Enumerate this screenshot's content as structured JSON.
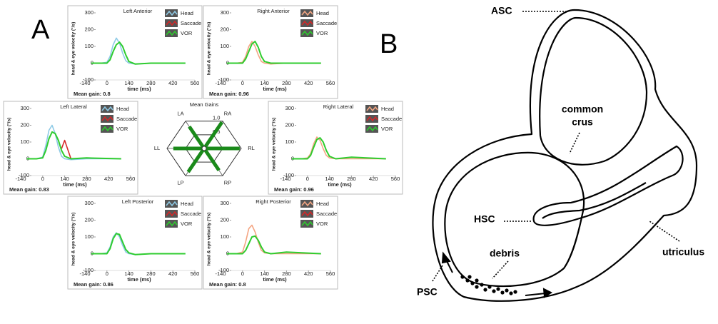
{
  "panel_labels": [
    "A",
    "B"
  ],
  "chart_data": [
    {
      "type": "line",
      "title": "Left Anterior",
      "y_label": "head & eye velocity (°/s)",
      "x_label": "time (ms)",
      "annotation": "Mean gain: 0.8",
      "x": [
        -100,
        -40,
        0,
        20,
        40,
        60,
        80,
        100,
        120,
        140,
        180,
        280,
        500
      ],
      "xlim": [
        -140,
        560
      ],
      "xticks": [
        -140,
        0,
        140,
        280,
        420,
        560
      ],
      "ylim": [
        -100,
        300
      ],
      "yticks": [
        -100,
        0,
        100,
        200,
        300
      ],
      "series": [
        {
          "name": "Head",
          "color": "#8ecae6",
          "values": [
            0,
            0,
            5,
            40,
            110,
            150,
            120,
            60,
            15,
            0,
            -5,
            0,
            0
          ]
        },
        {
          "name": "Saccade",
          "color": "#d62728",
          "values": [
            null,
            null,
            null,
            null,
            null,
            null,
            null,
            null,
            null,
            null,
            null,
            null,
            null
          ]
        },
        {
          "name": "VOR",
          "color": "#2ecc2e",
          "values": [
            0,
            0,
            0,
            20,
            70,
            110,
            125,
            100,
            50,
            10,
            -5,
            0,
            0
          ]
        }
      ]
    },
    {
      "type": "line",
      "title": "Right Anterior",
      "y_label": "head & eye velocity (°/s)",
      "x_label": "time (ms)",
      "annotation": "Mean gain: 0.96",
      "x": [
        -100,
        -40,
        0,
        20,
        40,
        60,
        80,
        100,
        120,
        140,
        180,
        280,
        500
      ],
      "xlim": [
        -140,
        560
      ],
      "xticks": [
        -140,
        0,
        140,
        280,
        420,
        560
      ],
      "ylim": [
        -100,
        300
      ],
      "yticks": [
        -100,
        0,
        100,
        200,
        300
      ],
      "series": [
        {
          "name": "Head",
          "color": "#f4a582",
          "values": [
            0,
            0,
            5,
            40,
            100,
            130,
            100,
            50,
            10,
            0,
            -5,
            0,
            0
          ]
        },
        {
          "name": "Saccade",
          "color": "#d62728",
          "values": [
            null,
            null,
            null,
            null,
            null,
            null,
            null,
            null,
            null,
            null,
            null,
            null,
            null
          ]
        },
        {
          "name": "VOR",
          "color": "#2ecc2e",
          "values": [
            0,
            0,
            0,
            25,
            70,
            115,
            130,
            95,
            40,
            10,
            0,
            0,
            0
          ]
        }
      ]
    },
    {
      "type": "line",
      "title": "Left Lateral",
      "y_label": "head & eye velocity (°/s)",
      "x_label": "time (ms)",
      "annotation": "Mean gain: 0.83",
      "x": [
        -100,
        -40,
        0,
        20,
        40,
        60,
        80,
        100,
        120,
        140,
        180,
        280,
        500
      ],
      "xlim": [
        -140,
        560
      ],
      "xticks": [
        -140,
        0,
        140,
        280,
        420,
        560
      ],
      "ylim": [
        -100,
        300
      ],
      "yticks": [
        -100,
        0,
        100,
        200,
        300
      ],
      "series": [
        {
          "name": "Head",
          "color": "#8ecae6",
          "values": [
            0,
            0,
            10,
            80,
            170,
            200,
            150,
            70,
            15,
            0,
            -5,
            0,
            0
          ]
        },
        {
          "name": "Saccade",
          "color": "#d62728",
          "values": [
            null,
            null,
            null,
            null,
            null,
            null,
            null,
            null,
            60,
            110,
            0,
            null,
            null
          ]
        },
        {
          "name": "VOR",
          "color": "#2ecc2e",
          "values": [
            0,
            0,
            5,
            50,
            120,
            160,
            150,
            110,
            50,
            15,
            0,
            5,
            0
          ]
        }
      ]
    },
    {
      "type": "line",
      "title": "Right Lateral",
      "y_label": "head & eye velocity (°/s)",
      "x_label": "time (ms)",
      "annotation": "Mean gain: 0.96",
      "x": [
        -100,
        -40,
        0,
        20,
        40,
        60,
        80,
        100,
        120,
        140,
        180,
        280,
        500
      ],
      "xlim": [
        -140,
        560
      ],
      "xticks": [
        -140,
        0,
        140,
        280,
        420,
        560
      ],
      "ylim": [
        -100,
        300
      ],
      "yticks": [
        -100,
        0,
        100,
        200,
        300
      ],
      "series": [
        {
          "name": "Head",
          "color": "#f4a582",
          "values": [
            0,
            0,
            5,
            30,
            90,
            130,
            110,
            60,
            20,
            5,
            0,
            0,
            0
          ]
        },
        {
          "name": "Saccade",
          "color": "#d62728",
          "values": [
            null,
            null,
            null,
            null,
            null,
            null,
            null,
            null,
            null,
            null,
            null,
            null,
            null
          ]
        },
        {
          "name": "VOR",
          "color": "#2ecc2e",
          "values": [
            0,
            0,
            0,
            20,
            70,
            115,
            125,
            100,
            50,
            15,
            0,
            10,
            0
          ]
        }
      ]
    },
    {
      "type": "line",
      "title": "Left Posterior",
      "y_label": "head & eye velocity (°/s)",
      "x_label": "time (ms)",
      "annotation": "Mean gain: 0.86",
      "x": [
        -100,
        -40,
        0,
        20,
        40,
        60,
        80,
        100,
        120,
        140,
        180,
        280,
        500
      ],
      "xlim": [
        -140,
        560
      ],
      "xticks": [
        -140,
        0,
        140,
        280,
        420,
        560
      ],
      "ylim": [
        -100,
        300
      ],
      "yticks": [
        -100,
        0,
        100,
        200,
        300
      ],
      "series": [
        {
          "name": "Head",
          "color": "#8ecae6",
          "values": [
            0,
            0,
            5,
            40,
            100,
            125,
            100,
            50,
            10,
            0,
            -5,
            0,
            0
          ]
        },
        {
          "name": "Saccade",
          "color": "#d62728",
          "values": [
            null,
            null,
            null,
            null,
            null,
            null,
            null,
            null,
            null,
            null,
            null,
            null,
            null
          ]
        },
        {
          "name": "VOR",
          "color": "#2ecc2e",
          "values": [
            0,
            0,
            0,
            30,
            90,
            120,
            115,
            70,
            25,
            5,
            -5,
            0,
            0
          ]
        }
      ]
    },
    {
      "type": "line",
      "title": "Right Posterior",
      "y_label": "head & eye velocity (°/s)",
      "x_label": "time (ms)",
      "annotation": "Mean gain: 0.8",
      "x": [
        -100,
        -40,
        0,
        20,
        40,
        60,
        80,
        100,
        120,
        140,
        180,
        280,
        500
      ],
      "xlim": [
        -140,
        560
      ],
      "xticks": [
        -140,
        0,
        140,
        280,
        420,
        560
      ],
      "ylim": [
        -100,
        300
      ],
      "yticks": [
        -100,
        0,
        100,
        200,
        300
      ],
      "series": [
        {
          "name": "Head",
          "color": "#f4a582",
          "values": [
            0,
            0,
            10,
            70,
            150,
            170,
            130,
            70,
            20,
            5,
            0,
            0,
            0
          ]
        },
        {
          "name": "Saccade",
          "color": "#d62728",
          "values": [
            null,
            null,
            null,
            null,
            null,
            null,
            null,
            null,
            null,
            null,
            null,
            null,
            null
          ]
        },
        {
          "name": "VOR",
          "color": "#2ecc2e",
          "values": [
            0,
            0,
            0,
            20,
            60,
            100,
            105,
            80,
            40,
            10,
            0,
            10,
            0
          ]
        }
      ]
    },
    {
      "type": "radar",
      "title": "Mean Gains",
      "categories": [
        "LA",
        "RA",
        "RL",
        "RP",
        "LP",
        "LL"
      ],
      "values": [
        0.8,
        0.96,
        0.96,
        0.8,
        0.86,
        0.83
      ],
      "color": "#1a8a1a",
      "rlim": [
        0,
        1
      ],
      "rticks": [
        0.5,
        {
          "value": 1,
          "label": "1.0"
        }
      ]
    }
  ],
  "diagram": {
    "labels": [
      "ASC",
      "common",
      "crus",
      "HSC",
      "debris",
      "PSC",
      "utriculus"
    ]
  }
}
